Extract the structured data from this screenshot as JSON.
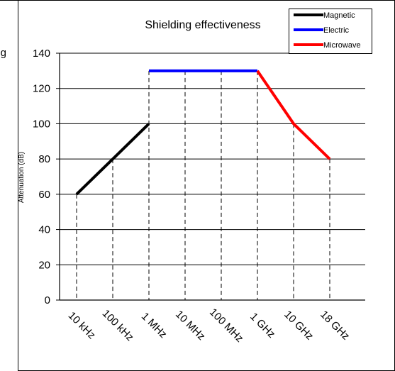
{
  "chart_data": {
    "type": "line",
    "title": "Shielding effectiveness",
    "ylabel": "Attenuation (dB)",
    "xlabel": "",
    "categories": [
      "10 kHz",
      "100 kHz",
      "1 MHz",
      "10 MHz",
      "100 MHz",
      "1 GHz",
      "10 GHz",
      "18 GHz"
    ],
    "yticks": [
      0,
      20,
      40,
      60,
      80,
      100,
      120,
      140
    ],
    "ylim": [
      0,
      140
    ],
    "grid": "horizontal",
    "legend": "top-right",
    "series": [
      {
        "name": "Magnetic",
        "color": "#000000",
        "x": [
          "10 kHz",
          "100 kHz",
          "1 MHz"
        ],
        "values": [
          60,
          80,
          100
        ]
      },
      {
        "name": "Electric",
        "color": "#0000ff",
        "x": [
          "1 MHz",
          "10 MHz",
          "100 MHz",
          "1 GHz"
        ],
        "values": [
          130,
          130,
          130,
          130
        ]
      },
      {
        "name": "Microwave",
        "color": "#ff0000",
        "x": [
          "1 GHz",
          "10 GHz",
          "18 GHz"
        ],
        "values": [
          130,
          100,
          80
        ]
      }
    ],
    "drop_lines": [
      {
        "x": "10 kHz",
        "value": 60
      },
      {
        "x": "100 kHz",
        "value": 80
      },
      {
        "x": "1 MHz",
        "value": 130
      },
      {
        "x": "10 MHz",
        "value": 130
      },
      {
        "x": "100 MHz",
        "value": 130
      },
      {
        "x": "1 GHz",
        "value": 130
      },
      {
        "x": "10 GHz",
        "value": 100
      },
      {
        "x": "18 GHz",
        "value": 80
      }
    ],
    "clipped_label_fragment": "g"
  }
}
